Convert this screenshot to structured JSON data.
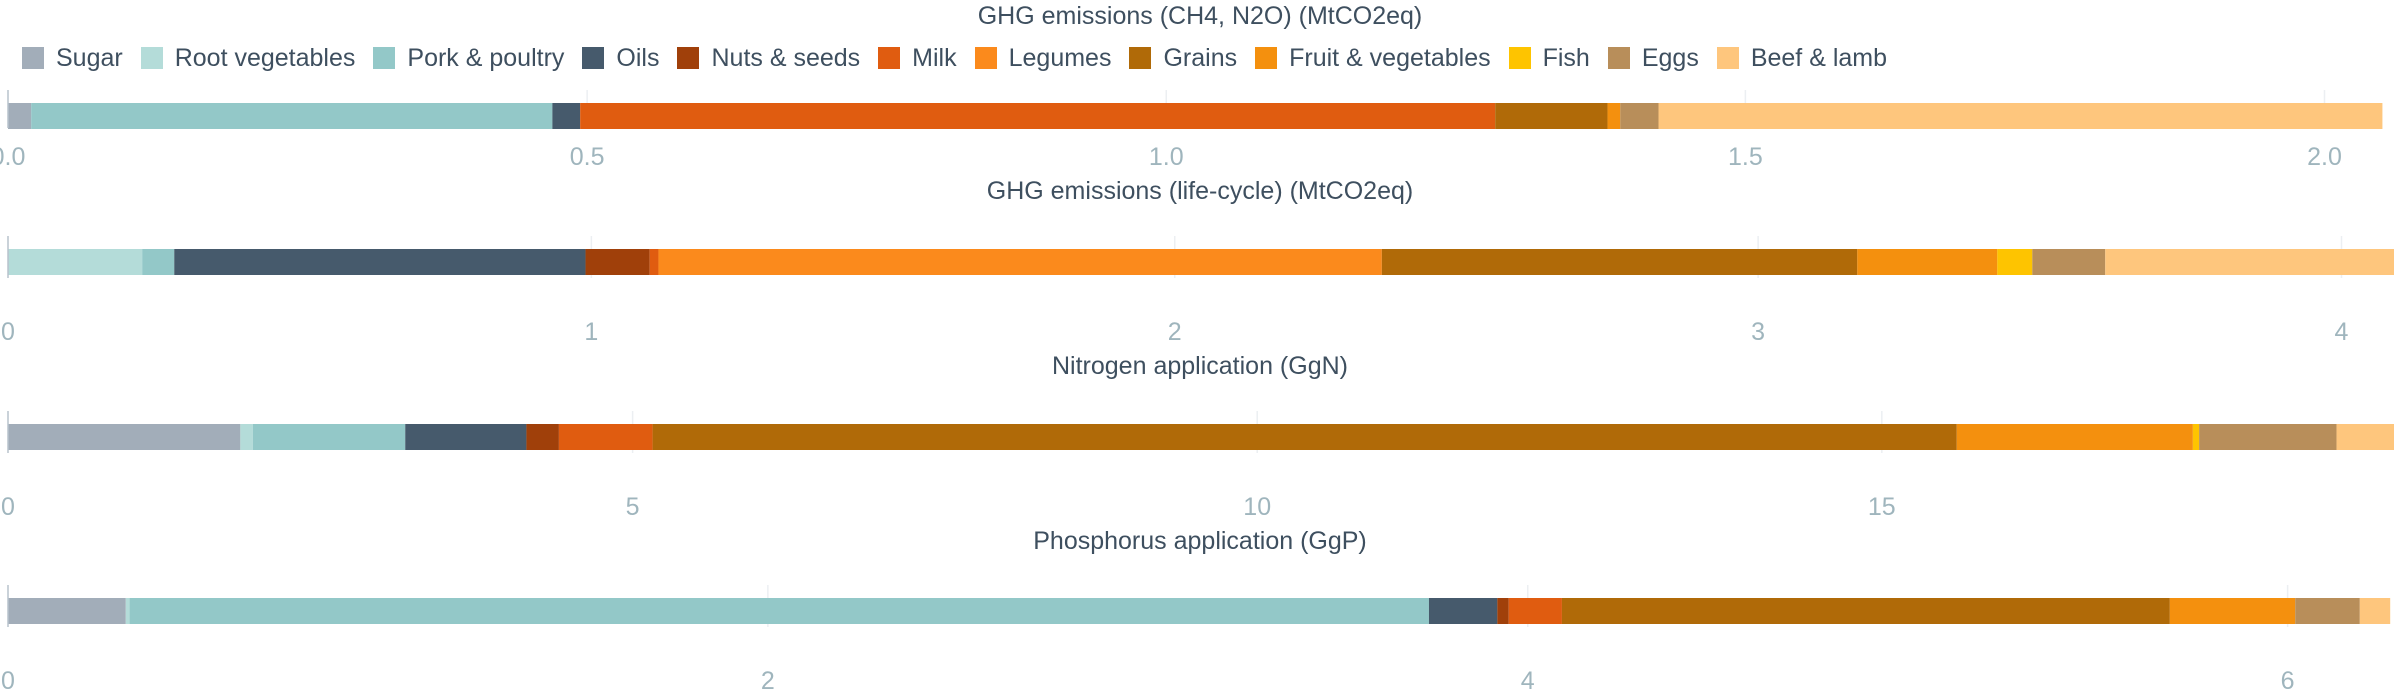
{
  "chart_data": {
    "type": "bar",
    "orientation": "horizontal",
    "stacked": true,
    "legend_position": "top-left",
    "grid": true,
    "categories": [
      "Sugar",
      "Root vegetables",
      "Pork & poultry",
      "Oils",
      "Nuts & seeds",
      "Milk",
      "Legumes",
      "Grains",
      "Fruit & vegetables",
      "Fish",
      "Eggs",
      "Beef & lamb"
    ],
    "colors": [
      "#a2adb9",
      "#b4dcd9",
      "#93c8c8",
      "#465a6c",
      "#a0400a",
      "#e05c10",
      "#fb8a1c",
      "#b06a08",
      "#f4900e",
      "#fec400",
      "#b88e5a",
      "#fec67d"
    ],
    "panels": [
      {
        "title": "GHG emissions (CH4, N2O) (MtCO2eq)",
        "xlim": [
          0,
          2.06
        ],
        "ticks": [
          0,
          0.5,
          1.0,
          1.5,
          2.0
        ],
        "tick_labels": [
          "0.0",
          "0.5",
          "1.0",
          "1.5",
          "2.0"
        ],
        "values": [
          0.02,
          0.0,
          0.45,
          0.024,
          0.0,
          0.79,
          0.0,
          0.097,
          0.011,
          0.0,
          0.033,
          0.625
        ]
      },
      {
        "title": "GHG emissions (life-cycle) (MtCO2eq)",
        "xlim": [
          0,
          4.09
        ],
        "ticks": [
          0,
          1,
          2,
          3,
          4
        ],
        "tick_labels": [
          "0",
          "1",
          "2",
          "3",
          "4"
        ],
        "values": [
          0.0,
          0.23,
          0.055,
          0.705,
          0.11,
          0.015,
          1.24,
          0.815,
          0.24,
          0.06,
          0.125,
          0.495
        ]
      },
      {
        "title": "Nitrogen application (GgN)",
        "xlim": [
          0,
          19.1
        ],
        "ticks": [
          0,
          5,
          10,
          15
        ],
        "tick_labels": [
          "0",
          "5",
          "10",
          "15"
        ],
        "values": [
          1.86,
          0.1,
          1.22,
          0.97,
          0.26,
          0.75,
          0.0,
          10.44,
          1.89,
          0.05,
          1.1,
          0.46
        ]
      },
      {
        "title": "Phosphorus application (GgP)",
        "xlim": [
          0,
          6.28
        ],
        "ticks": [
          0,
          2,
          4,
          6
        ],
        "tick_labels": [
          "0",
          "2",
          "4",
          "6"
        ],
        "values": [
          0.31,
          0.01,
          3.42,
          0.18,
          0.03,
          0.14,
          0.0,
          1.6,
          0.33,
          0.0,
          0.17,
          0.08
        ]
      }
    ]
  }
}
